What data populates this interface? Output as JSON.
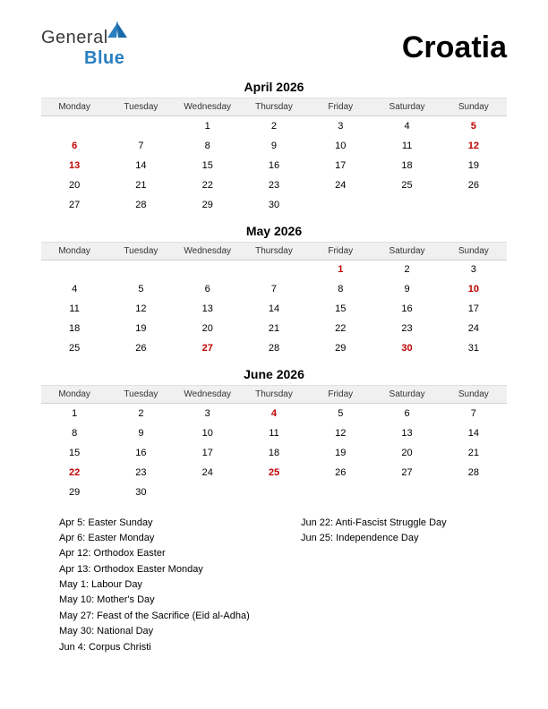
{
  "logo": {
    "part1": "General",
    "part2": "Blue"
  },
  "country": "Croatia",
  "colors": {
    "holiday": "#c00000",
    "header_bg": "#f0f0f0",
    "text": "#000000",
    "logo_blue": "#2a7fbf",
    "logo_gray": "#3a3a3a"
  },
  "weekdays": [
    "Monday",
    "Tuesday",
    "Wednesday",
    "Thursday",
    "Friday",
    "Saturday",
    "Sunday"
  ],
  "months": [
    {
      "title": "April 2026",
      "weeks": [
        [
          null,
          null,
          {
            "d": 1
          },
          {
            "d": 2
          },
          {
            "d": 3
          },
          {
            "d": 4
          },
          {
            "d": 5,
            "h": true
          }
        ],
        [
          {
            "d": 6,
            "h": true
          },
          {
            "d": 7
          },
          {
            "d": 8
          },
          {
            "d": 9
          },
          {
            "d": 10
          },
          {
            "d": 11
          },
          {
            "d": 12,
            "h": true
          }
        ],
        [
          {
            "d": 13,
            "h": true
          },
          {
            "d": 14
          },
          {
            "d": 15
          },
          {
            "d": 16
          },
          {
            "d": 17
          },
          {
            "d": 18
          },
          {
            "d": 19
          }
        ],
        [
          {
            "d": 20
          },
          {
            "d": 21
          },
          {
            "d": 22
          },
          {
            "d": 23
          },
          {
            "d": 24
          },
          {
            "d": 25
          },
          {
            "d": 26
          }
        ],
        [
          {
            "d": 27
          },
          {
            "d": 28
          },
          {
            "d": 29
          },
          {
            "d": 30
          },
          null,
          null,
          null
        ]
      ]
    },
    {
      "title": "May 2026",
      "weeks": [
        [
          null,
          null,
          null,
          null,
          {
            "d": 1,
            "h": true
          },
          {
            "d": 2
          },
          {
            "d": 3
          }
        ],
        [
          {
            "d": 4
          },
          {
            "d": 5
          },
          {
            "d": 6
          },
          {
            "d": 7
          },
          {
            "d": 8
          },
          {
            "d": 9
          },
          {
            "d": 10,
            "h": true
          }
        ],
        [
          {
            "d": 11
          },
          {
            "d": 12
          },
          {
            "d": 13
          },
          {
            "d": 14
          },
          {
            "d": 15
          },
          {
            "d": 16
          },
          {
            "d": 17
          }
        ],
        [
          {
            "d": 18
          },
          {
            "d": 19
          },
          {
            "d": 20
          },
          {
            "d": 21
          },
          {
            "d": 22
          },
          {
            "d": 23
          },
          {
            "d": 24
          }
        ],
        [
          {
            "d": 25
          },
          {
            "d": 26
          },
          {
            "d": 27,
            "h": true
          },
          {
            "d": 28
          },
          {
            "d": 29
          },
          {
            "d": 30,
            "h": true
          },
          {
            "d": 31
          }
        ]
      ]
    },
    {
      "title": "June 2026",
      "weeks": [
        [
          {
            "d": 1
          },
          {
            "d": 2
          },
          {
            "d": 3
          },
          {
            "d": 4,
            "h": true
          },
          {
            "d": 5
          },
          {
            "d": 6
          },
          {
            "d": 7
          }
        ],
        [
          {
            "d": 8
          },
          {
            "d": 9
          },
          {
            "d": 10
          },
          {
            "d": 11
          },
          {
            "d": 12
          },
          {
            "d": 13
          },
          {
            "d": 14
          }
        ],
        [
          {
            "d": 15
          },
          {
            "d": 16
          },
          {
            "d": 17
          },
          {
            "d": 18
          },
          {
            "d": 19
          },
          {
            "d": 20
          },
          {
            "d": 21
          }
        ],
        [
          {
            "d": 22,
            "h": true
          },
          {
            "d": 23
          },
          {
            "d": 24
          },
          {
            "d": 25,
            "h": true
          },
          {
            "d": 26
          },
          {
            "d": 27
          },
          {
            "d": 28
          }
        ],
        [
          {
            "d": 29
          },
          {
            "d": 30
          },
          null,
          null,
          null,
          null,
          null
        ]
      ]
    }
  ],
  "holidays_left": [
    "Apr 5: Easter Sunday",
    "Apr 6: Easter Monday",
    "Apr 12: Orthodox Easter",
    "Apr 13: Orthodox Easter Monday",
    "May 1: Labour Day",
    "May 10: Mother's Day",
    "May 27: Feast of the Sacrifice (Eid al-Adha)",
    "May 30: National Day",
    "Jun 4: Corpus Christi"
  ],
  "holidays_right": [
    "Jun 22: Anti-Fascist Struggle Day",
    "Jun 25: Independence Day"
  ]
}
